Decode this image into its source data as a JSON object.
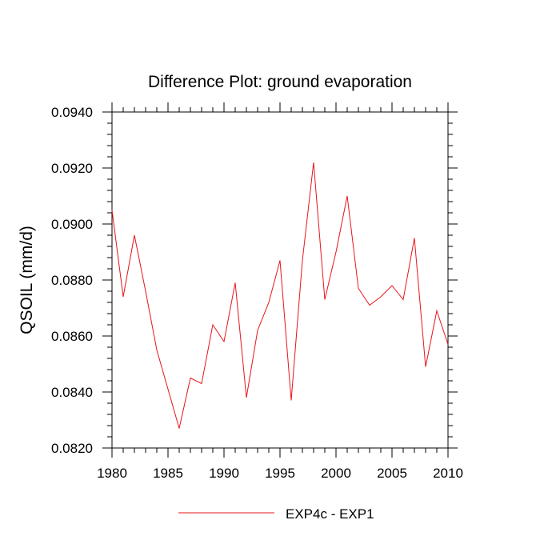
{
  "chart_data": {
    "type": "line",
    "title": "Difference Plot: ground evaporation",
    "xlabel": "",
    "ylabel": "QSOIL  (mm/d)",
    "xlim": [
      1980,
      2010
    ],
    "ylim": [
      0.082,
      0.094
    ],
    "x_ticks": [
      "1980",
      "1985",
      "1990",
      "1995",
      "2000",
      "2005",
      "2010"
    ],
    "y_ticks": [
      "0.0820",
      "0.0840",
      "0.0860",
      "0.0880",
      "0.0900",
      "0.0920",
      "0.0940"
    ],
    "grid": false,
    "legend_position": "bottom-center",
    "colors": {
      "series": "#e8141a",
      "axis": "#000000"
    },
    "series": [
      {
        "name": "EXP4c - EXP1",
        "x": [
          1980,
          1981,
          1982,
          1983,
          1984,
          1985,
          1986,
          1987,
          1988,
          1989,
          1990,
          1991,
          1992,
          1993,
          1994,
          1995,
          1996,
          1997,
          1998,
          1999,
          2000,
          2001,
          2002,
          2003,
          2004,
          2005,
          2006,
          2007,
          2008,
          2009,
          2010
        ],
        "values": [
          0.0905,
          0.0874,
          0.0896,
          0.0876,
          0.0855,
          0.0841,
          0.0827,
          0.0845,
          0.0843,
          0.0864,
          0.0858,
          0.0879,
          0.0838,
          0.0862,
          0.0872,
          0.0887,
          0.0837,
          0.0887,
          0.0922,
          0.0873,
          0.089,
          0.091,
          0.0877,
          0.0871,
          0.0874,
          0.0878,
          0.0873,
          0.0895,
          0.0849,
          0.0869,
          0.0857
        ]
      }
    ]
  }
}
